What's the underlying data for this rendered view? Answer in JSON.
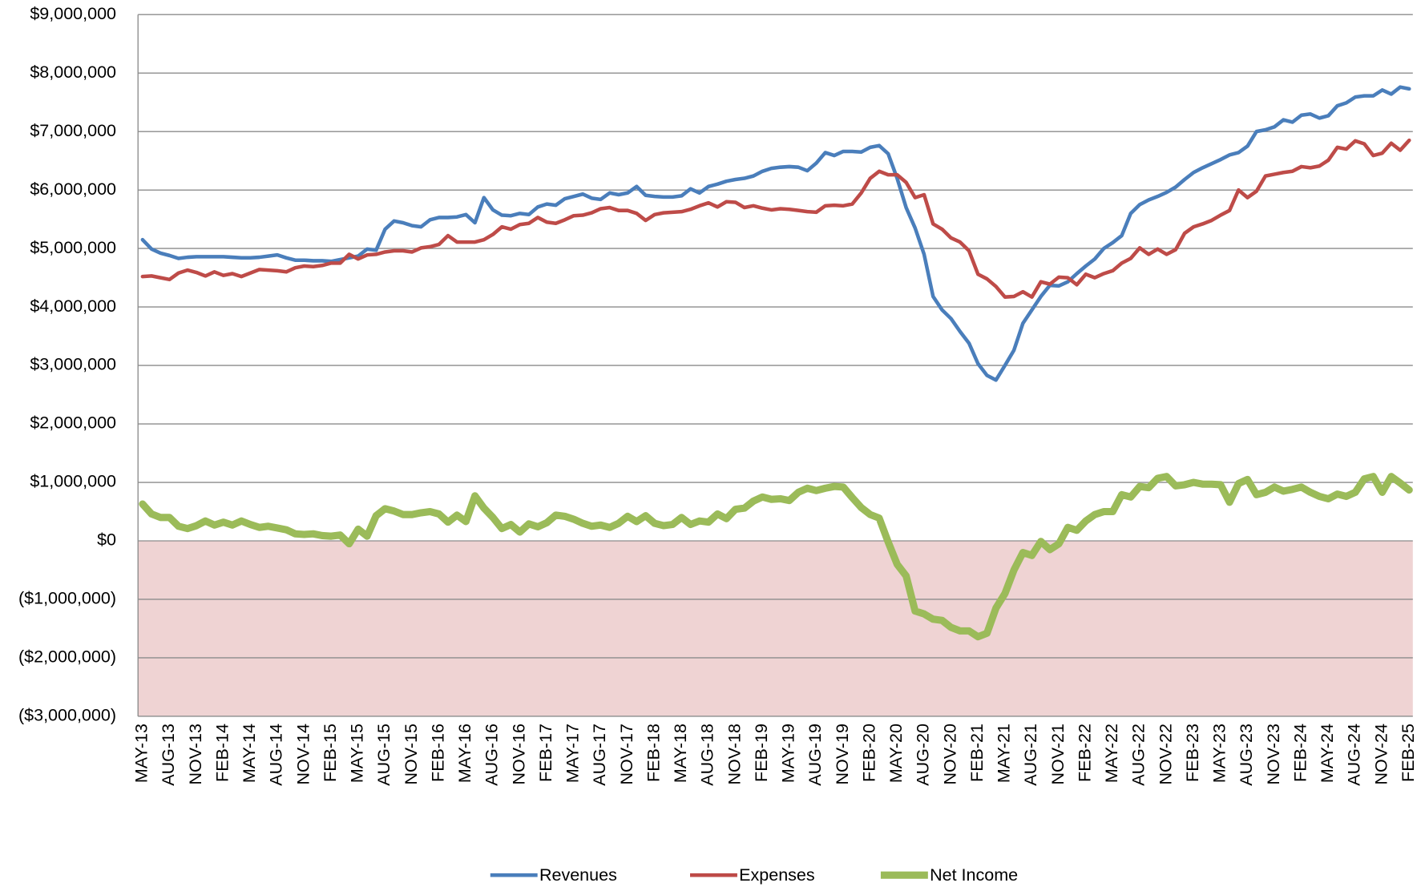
{
  "chart_data": {
    "type": "line",
    "categories": [
      "MAY-13",
      null,
      null,
      "AUG-13",
      null,
      null,
      "NOV-13",
      null,
      null,
      "FEB-14",
      null,
      null,
      "MAY-14",
      null,
      null,
      "AUG-14",
      null,
      null,
      "NOV-14",
      null,
      null,
      "FEB-15",
      null,
      null,
      "MAY-15",
      null,
      null,
      "AUG-15",
      null,
      null,
      "NOV-15",
      null,
      null,
      "FEB-16",
      null,
      null,
      "MAY-16",
      null,
      null,
      "AUG-16",
      null,
      null,
      "NOV-16",
      null,
      null,
      "FEB-17",
      null,
      null,
      "MAY-17",
      null,
      null,
      "AUG-17",
      null,
      null,
      "NOV-17",
      null,
      null,
      "FEB-18",
      null,
      null,
      "MAY-18",
      null,
      null,
      "AUG-18",
      null,
      null,
      "NOV-18",
      null,
      null,
      "FEB-19",
      null,
      null,
      "MAY-19",
      null,
      null,
      "AUG-19",
      null,
      null,
      "NOV-19",
      null,
      null,
      "FEB-20",
      null,
      null,
      "MAY-20",
      null,
      null,
      "AUG-20",
      null,
      null,
      "NOV-20",
      null,
      null,
      "FEB-21",
      null,
      null,
      "MAY-21",
      null,
      null,
      "AUG-21",
      null,
      null,
      "NOV-21",
      null,
      null,
      "FEB-22",
      null,
      null,
      "MAY-22",
      null,
      null,
      "AUG-22",
      null,
      null,
      "NOV-22",
      null,
      null,
      "FEB-23",
      null,
      null,
      "MAY-23",
      null,
      null,
      "AUG-23",
      null,
      null,
      "NOV-23",
      null,
      null,
      "FEB-24",
      null,
      null,
      "MAY-24",
      null,
      null,
      "AUG-24",
      null,
      null,
      "NOV-24",
      null,
      null,
      "FEB-25"
    ],
    "series": [
      {
        "name": "Revenues",
        "color": "#4a7ebb",
        "width": 4,
        "values": [
          5150000,
          4990000,
          4920000,
          4880000,
          4830000,
          4850000,
          4860000,
          4860000,
          4860000,
          4860000,
          4850000,
          4840000,
          4840000,
          4850000,
          4870000,
          4890000,
          4840000,
          4800000,
          4800000,
          4790000,
          4790000,
          4780000,
          4810000,
          4840000,
          4870000,
          4990000,
          4970000,
          5330000,
          5470000,
          5440000,
          5390000,
          5370000,
          5490000,
          5530000,
          5530000,
          5540000,
          5580000,
          5440000,
          5870000,
          5660000,
          5570000,
          5560000,
          5600000,
          5580000,
          5710000,
          5760000,
          5740000,
          5850000,
          5890000,
          5930000,
          5860000,
          5840000,
          5950000,
          5920000,
          5950000,
          6060000,
          5910000,
          5890000,
          5880000,
          5880000,
          5900000,
          6020000,
          5950000,
          6060000,
          6100000,
          6150000,
          6180000,
          6200000,
          6240000,
          6320000,
          6370000,
          6390000,
          6400000,
          6390000,
          6330000,
          6460000,
          6640000,
          6590000,
          6660000,
          6660000,
          6650000,
          6730000,
          6760000,
          6620000,
          6200000,
          5700000,
          5350000,
          4900000,
          4180000,
          3950000,
          3800000,
          3580000,
          3380000,
          3030000,
          2830000,
          2750000,
          3000000,
          3260000,
          3720000,
          3950000,
          4180000,
          4370000,
          4360000,
          4430000,
          4570000,
          4700000,
          4820000,
          5000000,
          5100000,
          5220000,
          5600000,
          5750000,
          5830000,
          5890000,
          5960000,
          6050000,
          6180000,
          6300000,
          6380000,
          6450000,
          6520000,
          6600000,
          6640000,
          6750000,
          7000000,
          7030000,
          7080000,
          7200000,
          7160000,
          7280000,
          7300000,
          7230000,
          7270000,
          7440000,
          7490000,
          7590000,
          7610000,
          7610000,
          7710000,
          7640000,
          7760000,
          7730000
        ]
      },
      {
        "name": "Expenses",
        "color": "#be4b48",
        "width": 4,
        "values": [
          4520000,
          4530000,
          4500000,
          4470000,
          4580000,
          4630000,
          4590000,
          4530000,
          4600000,
          4540000,
          4570000,
          4520000,
          4580000,
          4640000,
          4630000,
          4620000,
          4600000,
          4670000,
          4700000,
          4690000,
          4710000,
          4750000,
          4750000,
          4900000,
          4820000,
          4890000,
          4900000,
          4940000,
          4960000,
          4960000,
          4940000,
          5010000,
          5030000,
          5070000,
          5220000,
          5110000,
          5110000,
          5110000,
          5150000,
          5240000,
          5370000,
          5330000,
          5410000,
          5430000,
          5530000,
          5450000,
          5430000,
          5490000,
          5560000,
          5570000,
          5610000,
          5680000,
          5700000,
          5650000,
          5650000,
          5600000,
          5480000,
          5580000,
          5610000,
          5620000,
          5630000,
          5670000,
          5730000,
          5780000,
          5710000,
          5800000,
          5790000,
          5700000,
          5730000,
          5690000,
          5660000,
          5680000,
          5670000,
          5650000,
          5630000,
          5620000,
          5730000,
          5740000,
          5730000,
          5760000,
          5950000,
          6200000,
          6320000,
          6260000,
          6260000,
          6130000,
          5870000,
          5920000,
          5420000,
          5330000,
          5180000,
          5110000,
          4960000,
          4560000,
          4480000,
          4350000,
          4170000,
          4180000,
          4260000,
          4170000,
          4430000,
          4390000,
          4510000,
          4500000,
          4380000,
          4560000,
          4500000,
          4570000,
          4620000,
          4750000,
          4830000,
          5010000,
          4900000,
          4990000,
          4900000,
          4980000,
          5260000,
          5370000,
          5420000,
          5480000,
          5570000,
          5650000,
          6000000,
          5870000,
          5980000,
          6240000,
          6270000,
          6300000,
          6320000,
          6400000,
          6380000,
          6410000,
          6510000,
          6730000,
          6700000,
          6840000,
          6790000,
          6590000,
          6630000,
          6800000,
          6680000,
          6850000
        ]
      },
      {
        "name": "Net Income",
        "color": "#9bbb59",
        "width": 8,
        "values": [
          630000,
          460000,
          400000,
          400000,
          250000,
          210000,
          260000,
          340000,
          270000,
          320000,
          270000,
          340000,
          280000,
          230000,
          250000,
          220000,
          190000,
          120000,
          110000,
          120000,
          90000,
          80000,
          100000,
          -50000,
          200000,
          80000,
          430000,
          550000,
          510000,
          450000,
          450000,
          480000,
          500000,
          460000,
          320000,
          440000,
          330000,
          770000,
          560000,
          400000,
          210000,
          280000,
          150000,
          290000,
          240000,
          310000,
          440000,
          420000,
          370000,
          300000,
          250000,
          270000,
          230000,
          300000,
          420000,
          330000,
          430000,
          300000,
          260000,
          280000,
          400000,
          280000,
          340000,
          320000,
          460000,
          380000,
          540000,
          560000,
          680000,
          750000,
          710000,
          720000,
          690000,
          830000,
          900000,
          860000,
          900000,
          930000,
          920000,
          740000,
          570000,
          450000,
          390000,
          -20000,
          -400000,
          -600000,
          -1200000,
          -1250000,
          -1340000,
          -1360000,
          -1480000,
          -1540000,
          -1540000,
          -1640000,
          -1580000,
          -1150000,
          -900000,
          -500000,
          -200000,
          -250000,
          -10000,
          -150000,
          -50000,
          230000,
          180000,
          340000,
          450000,
          500000,
          500000,
          790000,
          750000,
          930000,
          910000,
          1070000,
          1100000,
          940000,
          960000,
          1000000,
          970000,
          970000,
          960000,
          660000,
          980000,
          1050000,
          790000,
          830000,
          920000,
          850000,
          880000,
          920000,
          830000,
          760000,
          720000,
          800000,
          760000,
          830000,
          1060000,
          1100000,
          830000,
          1100000,
          990000,
          870000
        ]
      }
    ],
    "ylim": [
      -3000000,
      9000000
    ],
    "yticks": [
      {
        "value": -3000000,
        "label": "($3,000,000)"
      },
      {
        "value": -2000000,
        "label": "($2,000,000)"
      },
      {
        "value": -1000000,
        "label": "($1,000,000)"
      },
      {
        "value": 0,
        "label": "$0"
      },
      {
        "value": 1000000,
        "label": "$1,000,000"
      },
      {
        "value": 2000000,
        "label": "$2,000,000"
      },
      {
        "value": 3000000,
        "label": "$3,000,000"
      },
      {
        "value": 4000000,
        "label": "$4,000,000"
      },
      {
        "value": 5000000,
        "label": "$5,000,000"
      },
      {
        "value": 6000000,
        "label": "$6,000,000"
      },
      {
        "value": 7000000,
        "label": "$7,000,000"
      },
      {
        "value": 8000000,
        "label": "$8,000,000"
      },
      {
        "value": 9000000,
        "label": "$9,000,000"
      }
    ],
    "grid": true,
    "legend": "bottom",
    "negative_fill": "#efd3d3",
    "negative_label_color": "#ff0000"
  }
}
